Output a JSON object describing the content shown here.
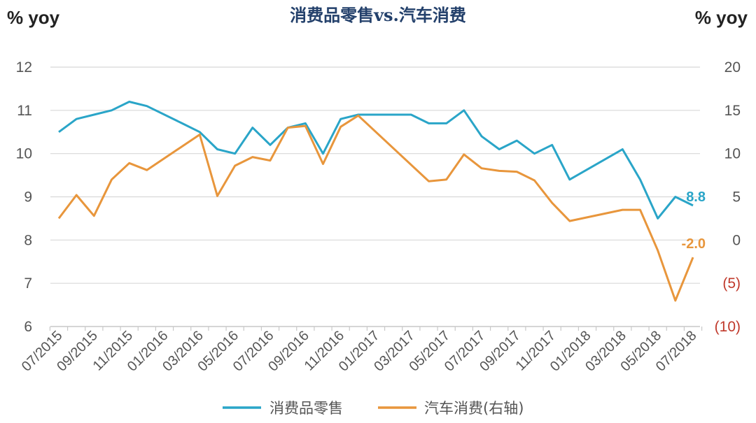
{
  "chart_data": {
    "type": "line",
    "title": "消费品零售vs.汽车消费",
    "ylabel_left": "% yoy",
    "ylabel_right": "% yoy",
    "ylim_left": [
      6,
      12
    ],
    "ylim_right": [
      -10,
      20
    ],
    "yticks_left": [
      "12",
      "11",
      "10",
      "9",
      "8",
      "7",
      "6"
    ],
    "yticks_right": [
      "20",
      "15",
      "10",
      "5",
      "0",
      "(5)",
      "(10)"
    ],
    "x": [
      "07/2015",
      "08/2015",
      "09/2015",
      "10/2015",
      "11/2015",
      "12/2015",
      "01/2016",
      "02/2016",
      "03/2016",
      "04/2016",
      "05/2016",
      "06/2016",
      "07/2016",
      "08/2016",
      "09/2016",
      "10/2016",
      "11/2016",
      "12/2016",
      "01/2017",
      "02/2017",
      "03/2017",
      "04/2017",
      "05/2017",
      "06/2017",
      "07/2017",
      "08/2017",
      "09/2017",
      "10/2017",
      "11/2017",
      "12/2017",
      "01/2018",
      "02/2018",
      "03/2018",
      "04/2018",
      "05/2018",
      "06/2018",
      "07/2018"
    ],
    "xtick_labels": [
      "07/2015",
      "09/2015",
      "11/2015",
      "01/2016",
      "03/2016",
      "05/2016",
      "07/2016",
      "09/2016",
      "11/2016",
      "01/2017",
      "03/2017",
      "05/2017",
      "07/2017",
      "09/2017",
      "11/2017",
      "01/2018",
      "03/2018",
      "05/2018",
      "07/2018"
    ],
    "grid": true,
    "legend_position": "bottom-center",
    "series": [
      {
        "name": "消费品零售",
        "axis": "left",
        "color": "#2aa5c8",
        "end_label": "8.8",
        "points": [
          [
            "07/2015",
            10.5
          ],
          [
            "08/2015",
            10.8
          ],
          [
            "09/2015",
            10.9
          ],
          [
            "10/2015",
            11.0
          ],
          [
            "11/2015",
            11.2
          ],
          [
            "12/2015",
            11.1
          ],
          [
            "02/2016",
            10.7
          ],
          [
            "03/2016",
            10.5
          ],
          [
            "04/2016",
            10.1
          ],
          [
            "05/2016",
            10.0
          ],
          [
            "06/2016",
            10.6
          ],
          [
            "07/2016",
            10.2
          ],
          [
            "08/2016",
            10.6
          ],
          [
            "09/2016",
            10.7
          ],
          [
            "10/2016",
            10.0
          ],
          [
            "11/2016",
            10.8
          ],
          [
            "12/2016",
            10.9
          ],
          [
            "01/2017",
            10.9
          ],
          [
            "03/2017",
            10.9
          ],
          [
            "04/2017",
            10.7
          ],
          [
            "05/2017",
            10.7
          ],
          [
            "06/2017",
            11.0
          ],
          [
            "07/2017",
            10.4
          ],
          [
            "08/2017",
            10.1
          ],
          [
            "09/2017",
            10.3
          ],
          [
            "10/2017",
            10.0
          ],
          [
            "11/2017",
            10.2
          ],
          [
            "12/2017",
            9.4
          ],
          [
            "03/2018",
            10.1
          ],
          [
            "04/2018",
            9.4
          ],
          [
            "05/2018",
            8.5
          ],
          [
            "06/2018",
            9.0
          ],
          [
            "07/2018",
            8.8
          ]
        ]
      },
      {
        "name": "汽车消费(右轴)",
        "axis": "right",
        "color": "#e8963c",
        "end_label": "-2.0",
        "points": [
          [
            "07/2015",
            2.5
          ],
          [
            "08/2015",
            5.2
          ],
          [
            "09/2015",
            2.8
          ],
          [
            "10/2015",
            7.0
          ],
          [
            "11/2015",
            8.9
          ],
          [
            "12/2015",
            8.1
          ],
          [
            "03/2016",
            12.2
          ],
          [
            "04/2016",
            5.1
          ],
          [
            "05/2016",
            8.6
          ],
          [
            "06/2016",
            9.6
          ],
          [
            "07/2016",
            9.2
          ],
          [
            "08/2016",
            13.0
          ],
          [
            "09/2016",
            13.2
          ],
          [
            "10/2016",
            8.8
          ],
          [
            "11/2016",
            13.1
          ],
          [
            "12/2016",
            14.4
          ],
          [
            "04/2017",
            6.8
          ],
          [
            "05/2017",
            7.0
          ],
          [
            "06/2017",
            9.9
          ],
          [
            "07/2017",
            8.3
          ],
          [
            "08/2017",
            8.0
          ],
          [
            "09/2017",
            7.9
          ],
          [
            "10/2017",
            6.9
          ],
          [
            "11/2017",
            4.3
          ],
          [
            "12/2017",
            2.2
          ],
          [
            "03/2018",
            3.5
          ],
          [
            "04/2018",
            3.5
          ],
          [
            "05/2018",
            -1.2
          ],
          [
            "06/2018",
            -7.0
          ],
          [
            "07/2018",
            -2.0
          ]
        ]
      }
    ]
  }
}
